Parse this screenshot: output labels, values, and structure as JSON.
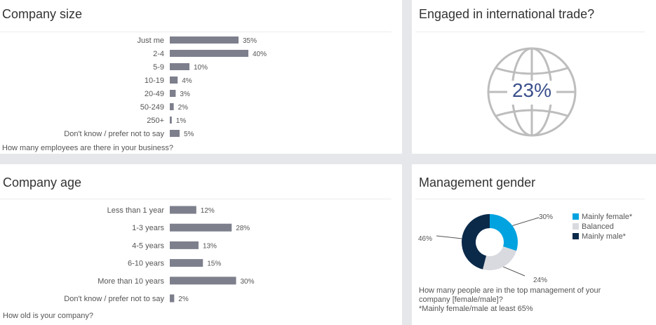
{
  "panels": {
    "company_size": {
      "title": "Company size",
      "note": "How many employees are there in your business?"
    },
    "trade": {
      "title": "Engaged in international trade?",
      "value": "23%"
    },
    "company_age": {
      "title": "Company age",
      "note": "How old is your company?"
    },
    "gender": {
      "title": "Management gender",
      "note_line1": "How many people are in the top management of your",
      "note_line2": "company [female/male]?",
      "note_line3": "*Mainly female/male at least 65%"
    }
  },
  "colors": {
    "bar": "#7d7f8c",
    "globe": "#bdbdbd",
    "trade_value": "#3b4f8c",
    "female": "#00a3e0",
    "balanced": "#d9dadf",
    "male": "#0b2a4a"
  },
  "icons": [
    "globe-icon"
  ],
  "chart_data": [
    {
      "type": "bar",
      "orientation": "horizontal",
      "title": "Company size",
      "categories": [
        "Just me",
        "2-4",
        "5-9",
        "10-19",
        "20-49",
        "50-249",
        "250+",
        "Don't know / prefer not to say"
      ],
      "values": [
        35,
        40,
        10,
        4,
        3,
        2,
        1,
        5
      ],
      "labels": [
        "35%",
        "40%",
        "10%",
        "4%",
        "3%",
        "2%",
        "1%",
        "5%"
      ],
      "grid": false
    },
    {
      "type": "bar",
      "orientation": "horizontal",
      "title": "Company age",
      "categories": [
        "Less than 1 year",
        "1-3 years",
        "4-5 years",
        "6-10 years",
        "More than 10 years",
        "Don't know / prefer not to say"
      ],
      "values": [
        12,
        28,
        13,
        15,
        30,
        2
      ],
      "labels": [
        "12%",
        "28%",
        "13%",
        "15%",
        "30%",
        "2%"
      ],
      "grid": false
    },
    {
      "type": "pie",
      "donut": true,
      "title": "Management gender",
      "categories": [
        "Mainly female*",
        "Balanced",
        "Mainly male*"
      ],
      "values": [
        30,
        24,
        46
      ],
      "labels": [
        "30%",
        "24%",
        "46%"
      ],
      "legend": "right"
    }
  ]
}
